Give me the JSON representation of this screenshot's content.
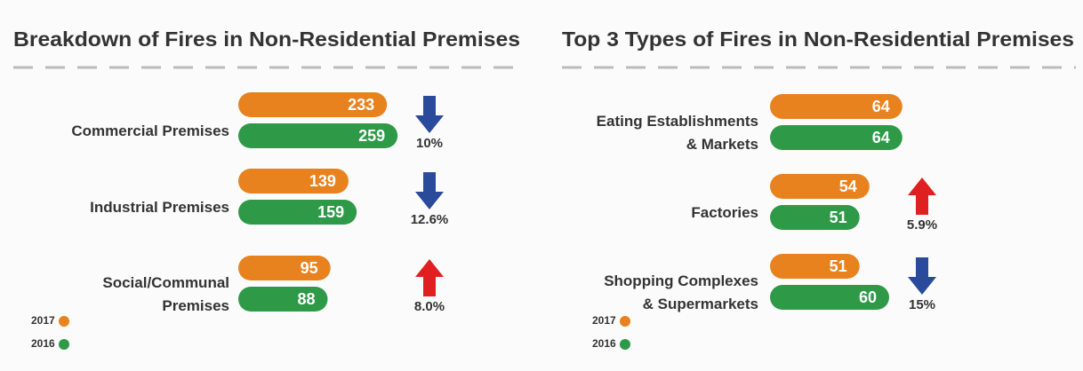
{
  "chart_data": [
    {
      "type": "bar",
      "title": "Breakdown of Fires in Non-Residential Premises",
      "categories": [
        [
          "Commercial Premises"
        ],
        [
          "Industrial Premises"
        ],
        [
          "Social/Communal",
          "Premises"
        ]
      ],
      "series": [
        {
          "name": "2017",
          "color": "#e8821e",
          "values": [
            233,
            139,
            95
          ]
        },
        {
          "name": "2016",
          "color": "#2e9a48",
          "values": [
            259,
            159,
            88
          ]
        }
      ],
      "change_labels": [
        "10%",
        "12.6%",
        "8.0%"
      ],
      "change_directions": [
        "down",
        "down",
        "up"
      ]
    },
    {
      "type": "bar",
      "title": "Top 3 Types of Fires in Non-Residential Premises",
      "categories": [
        [
          "Eating Establishments",
          "& Markets"
        ],
        [
          "Factories"
        ],
        [
          "Shopping Complexes",
          "& Supermarkets"
        ]
      ],
      "series": [
        {
          "name": "2017",
          "color": "#e8821e",
          "values": [
            64,
            54,
            51
          ]
        },
        {
          "name": "2016",
          "color": "#2e9a48",
          "values": [
            64,
            51,
            60
          ]
        }
      ],
      "change_labels": [
        null,
        "5.9%",
        "15%"
      ],
      "change_directions": [
        null,
        "up",
        "down"
      ]
    }
  ]
}
